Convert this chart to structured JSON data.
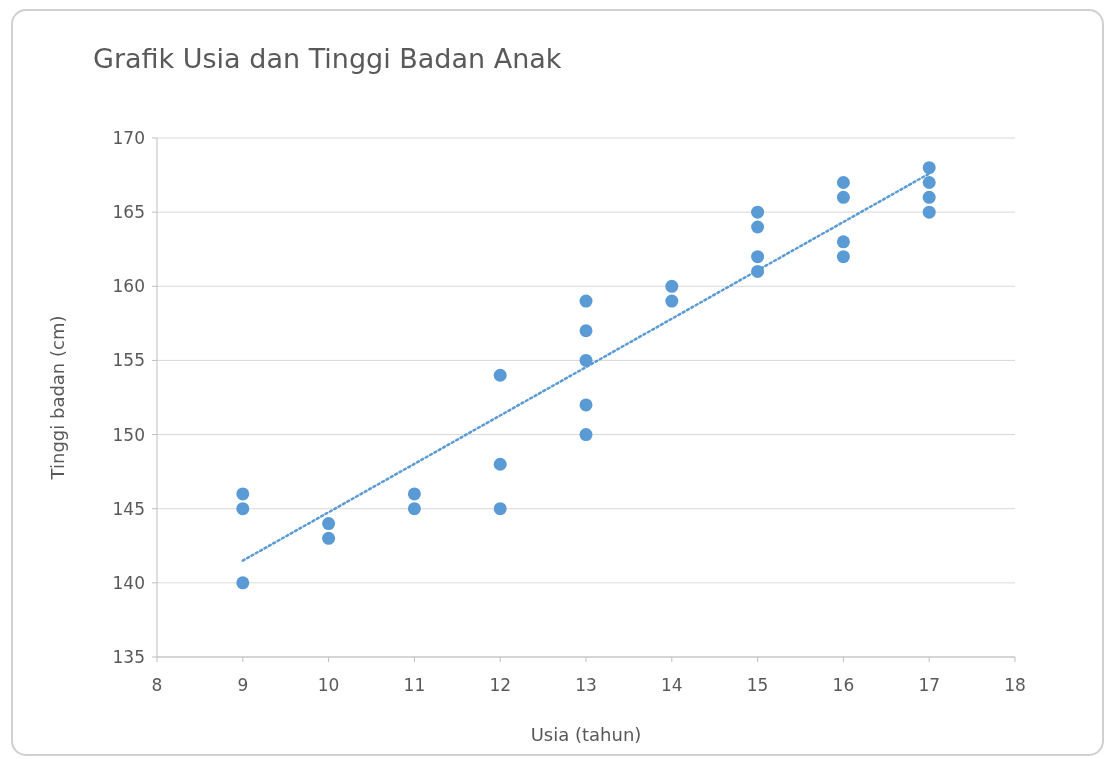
{
  "chart_data": {
    "type": "scatter",
    "title": "Grafik Usia dan Tinggi Badan Anak",
    "xlabel": "Usia (tahun)",
    "ylabel": "Tinggi badan (cm)",
    "xlim": [
      8,
      18
    ],
    "xticks": [
      8,
      9,
      10,
      11,
      12,
      13,
      14,
      15,
      16,
      17,
      18
    ],
    "ylim": [
      135,
      170
    ],
    "yticks": [
      135,
      140,
      145,
      150,
      155,
      160,
      165,
      170
    ],
    "grid": "y",
    "marker": "circle",
    "series": [
      {
        "color": "#5b9bd5",
        "x": [
          9,
          9,
          9,
          10,
          10,
          11,
          11,
          12,
          12,
          12,
          13,
          13,
          13,
          13,
          13,
          14,
          14,
          15,
          15,
          15,
          15,
          16,
          16,
          16,
          16,
          17,
          17,
          17,
          17
        ],
        "values": [
          146,
          145,
          140,
          144,
          143,
          146,
          145,
          154,
          148,
          145,
          159,
          157,
          155,
          152,
          150,
          160,
          159,
          165,
          164,
          162,
          161,
          167,
          166,
          163,
          162,
          168,
          167,
          166,
          165
        ]
      },
      {
        "type": "line",
        "color": "#5b9bd5",
        "line_style": "dotted",
        "marker": "none",
        "x": [
          9,
          17
        ],
        "values": [
          141.5,
          167.6
        ]
      }
    ]
  }
}
